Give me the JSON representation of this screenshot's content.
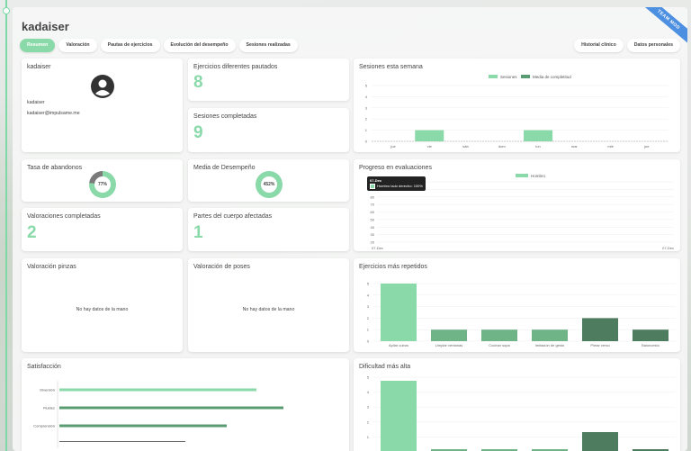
{
  "header": {
    "title": "kadaiser",
    "ribbon": "TEAM MOD"
  },
  "tabs": [
    {
      "label": "Resumen",
      "active": true
    },
    {
      "label": "Valoración"
    },
    {
      "label": "Pautas de ejercicios"
    },
    {
      "label": "Evolución del desempeño"
    },
    {
      "label": "Sesiones realizadas"
    }
  ],
  "tabs_right": [
    {
      "label": "Historial clínico"
    },
    {
      "label": "Datos personales"
    }
  ],
  "profile": {
    "name_title": "kadaiser",
    "username": "kadaiser",
    "email": "kadaiser@impulsame.me"
  },
  "stats": {
    "ejercicios_title": "Ejercicios diferentes pautados",
    "ejercicios_value": "8",
    "sesiones_title": "Sesiones completadas",
    "sesiones_value": "9",
    "abandono_title": "Tasa de abandonos",
    "abandono_label": "77%",
    "abandono_value": 77,
    "desempeno_title": "Media de Desempeño",
    "desempeno_label": "452%",
    "valoraciones_title": "Valoraciones completadas",
    "valoraciones_value": "2",
    "partes_title": "Partes del cuerpo afectadas",
    "partes_value": "1"
  },
  "pinzas": {
    "title": "Valoración pinzas",
    "empty": "No hay datos de la mano"
  },
  "poses": {
    "title": "Valoración de poses",
    "empty": "No hay datos de la mano"
  },
  "colors": {
    "accent": "#8ad9a9",
    "dark_green": "#5a9c72",
    "darker_green": "#4d7d5e",
    "grey": "#7a7a7a"
  },
  "chart_data": [
    {
      "id": "sesiones_semana",
      "type": "bar",
      "title": "Sesiones esta semana",
      "legend": [
        "Sesiones",
        "Media de completitud"
      ],
      "categories": [
        "jue",
        "vie",
        "sáb",
        "dom",
        "lun",
        "mar",
        "mié",
        "jue"
      ],
      "series": [
        {
          "name": "Sesiones",
          "values": [
            0,
            1,
            0,
            0,
            1,
            0,
            0,
            0
          ]
        }
      ],
      "yticks": [
        "5",
        "4",
        "3",
        "2",
        "1",
        "0"
      ],
      "ylim": [
        0,
        5
      ]
    },
    {
      "id": "progreso",
      "type": "line",
      "title": "Progreso en evaluaciones",
      "legend": [
        "Hombro"
      ],
      "yticks": [
        "100",
        "90",
        "80",
        "70",
        "60",
        "50",
        "40",
        "30",
        "20"
      ],
      "ylim": [
        20,
        100
      ],
      "x": [
        "07-Dec",
        "07-Dec"
      ],
      "tooltip_title": "07-Dec",
      "tooltip_line": "Hombro lado derecho: 100%"
    },
    {
      "id": "ejercicios_repetidos",
      "type": "bar",
      "title": "Ejercicios más repetidos",
      "categories": [
        "Apilar cubos",
        "Limpiar ventanas",
        "Cocinar sopa",
        "Imitación de gesto",
        "Pintar verso",
        "Baloncesto"
      ],
      "values": [
        5,
        1,
        1,
        1,
        2,
        1
      ],
      "yticks": [
        "5",
        "4",
        "3",
        "2",
        "1",
        "0"
      ],
      "ylim": [
        0,
        5
      ]
    },
    {
      "id": "satisfaccion",
      "type": "bar",
      "title": "Satisfacción",
      "categories": [
        "Diversión",
        "Fluidez",
        "Comprensión"
      ],
      "values": [
        0.73,
        0.83,
        0.62
      ]
    },
    {
      "id": "dificultad",
      "type": "bar",
      "title": "Dificultad más alta",
      "values": [
        5,
        1,
        1,
        1,
        2,
        1
      ],
      "yticks": [
        "5",
        "4",
        "3",
        "2",
        "1"
      ],
      "ylim": [
        0,
        5
      ]
    }
  ]
}
